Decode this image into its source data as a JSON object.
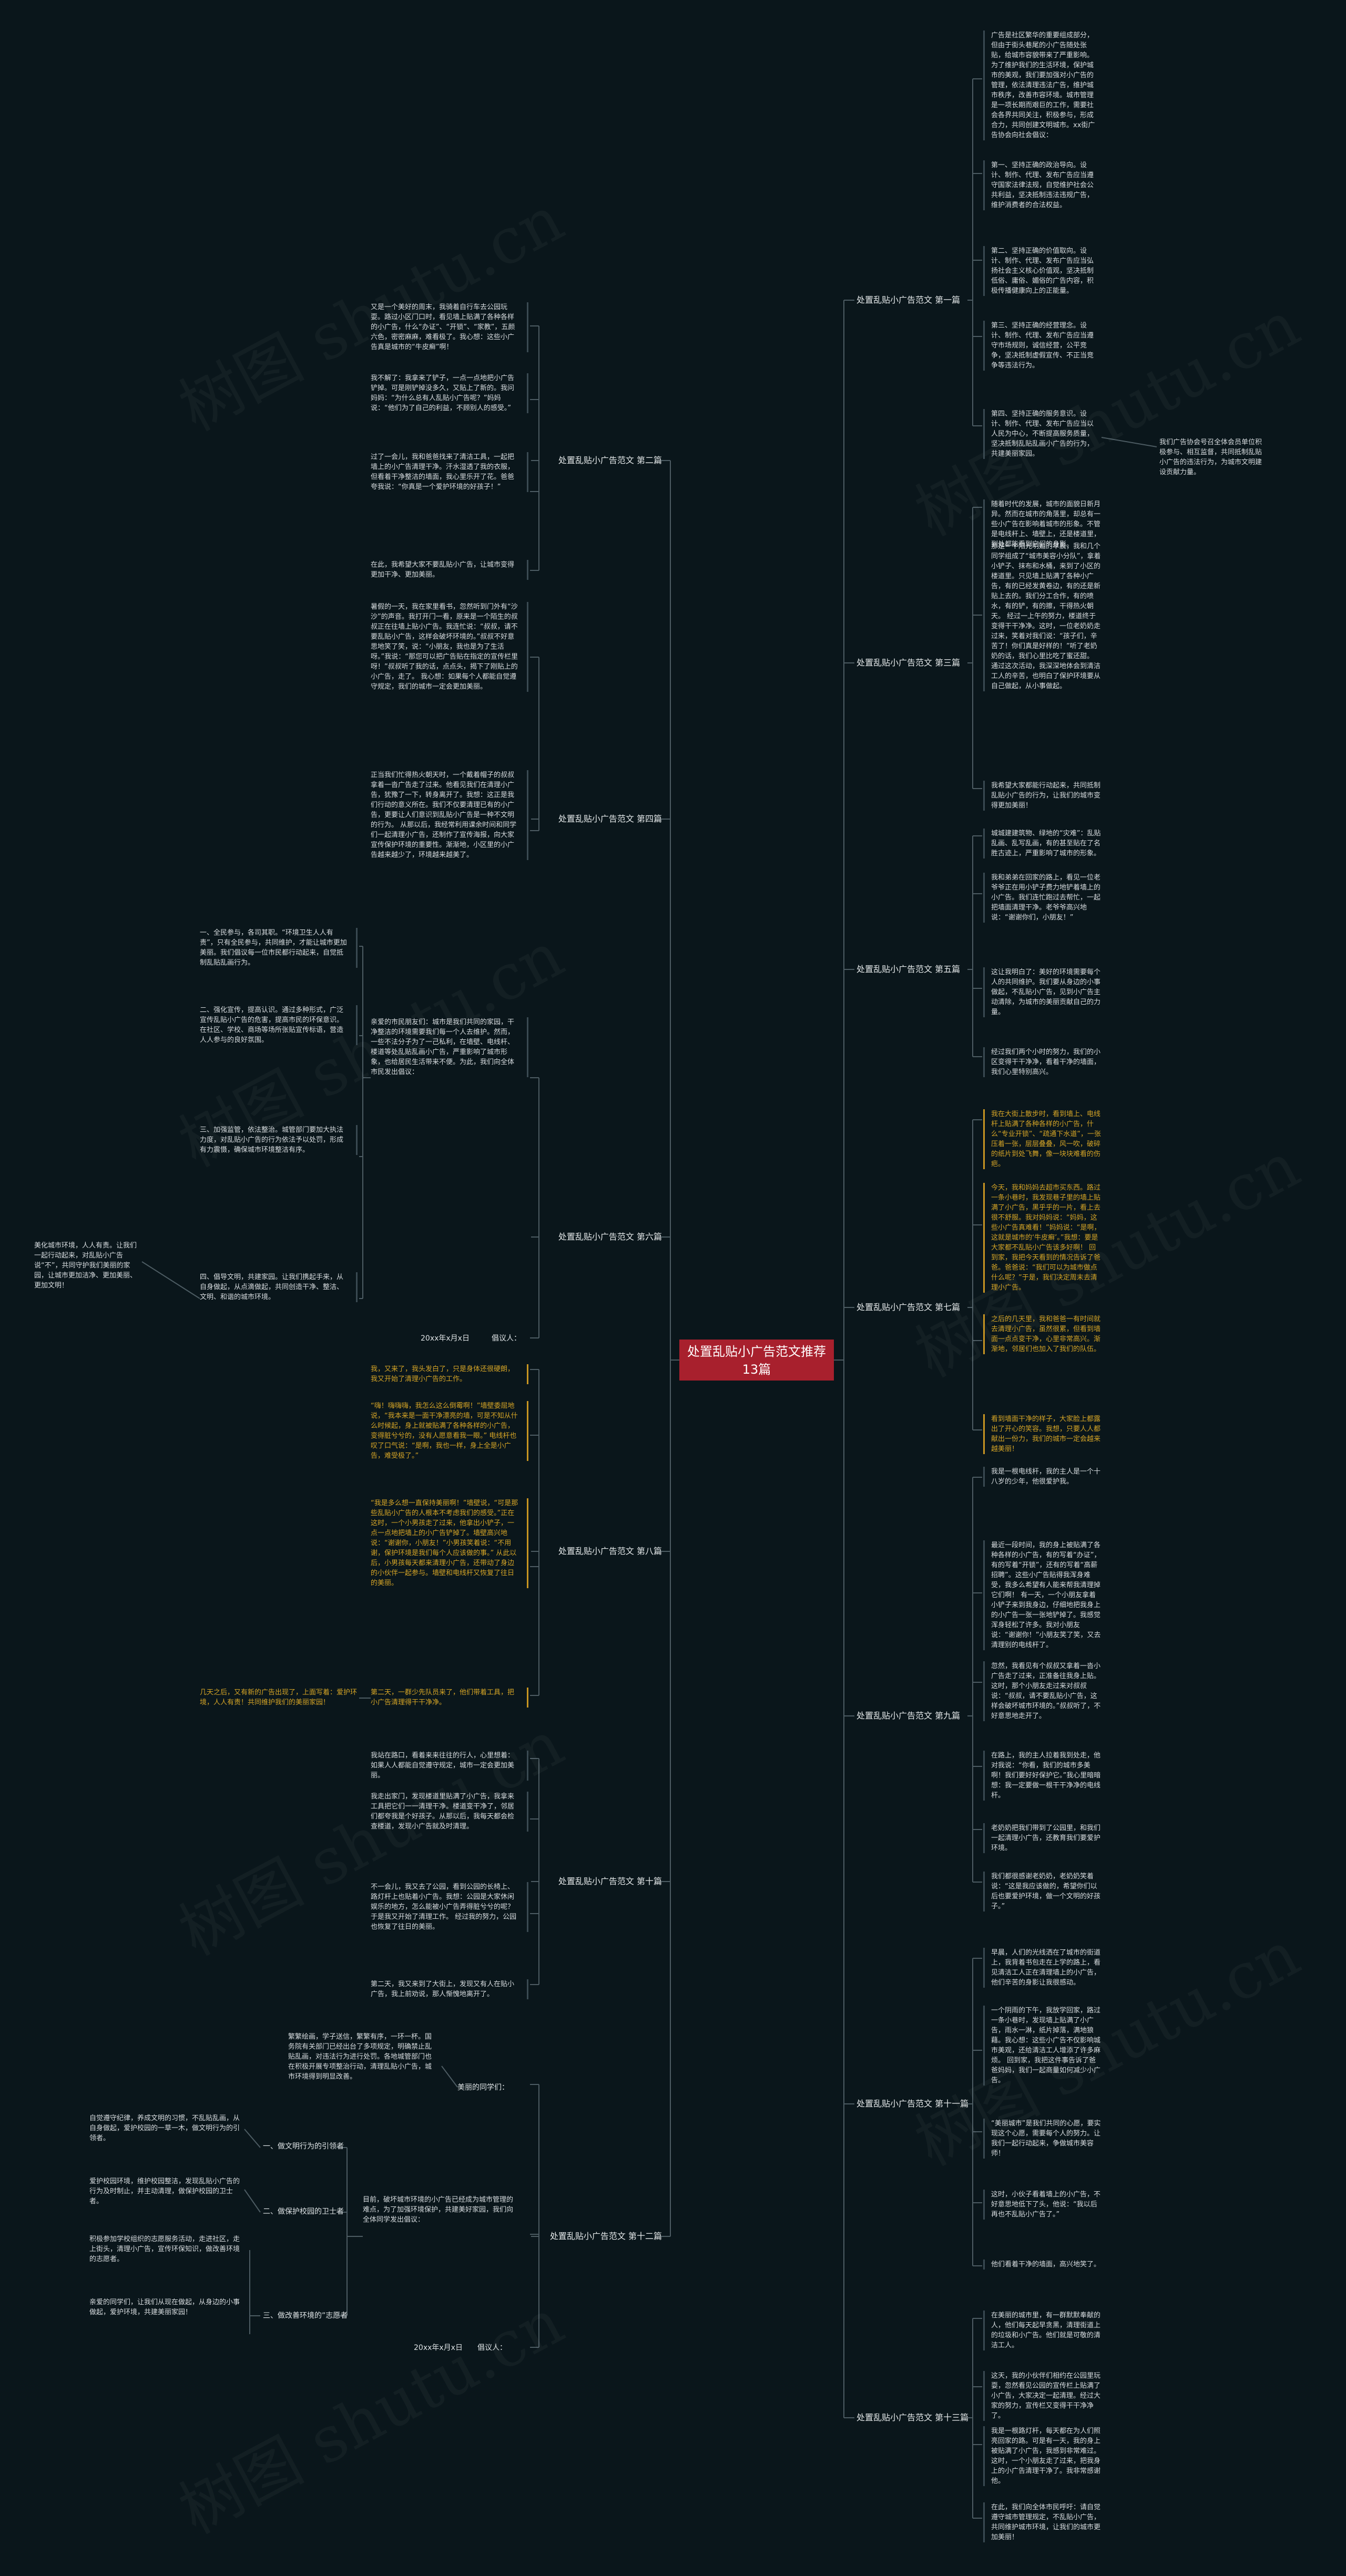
{
  "title": "处置乱贴小广告范文推荐13篇",
  "watermark": "树图 shutu.cn",
  "branches": [
    "处置乱贴小广告范文 第一篇",
    "处置乱贴小广告范文 第二篇",
    "处置乱贴小广告范文 第三篇",
    "处置乱贴小广告范文 第四篇",
    "处置乱贴小广告范文 第五篇",
    "处置乱贴小广告范文 第六篇",
    "处置乱贴小广告范文 第七篇",
    "处置乱贴小广告范文 第八篇",
    "处置乱贴小广告范文 第九篇",
    "处置乱贴小广告范文 第十篇",
    "处置乱贴小广告范文 第十一篇",
    "处置乱贴小广告范文 第十二篇",
    "处置乱贴小广告范文 第十三篇"
  ],
  "first": {
    "leaves": [
      "广告是社区繁华的重要组成部分，但由于街头巷尾的小广告随处张贴，给城市容貌带来了严重影响。为了维护我们的生活环境，保护城市的美观，我们要加强对小广告的管理，依法清理违法广告，维护城市秩序，改善市容环境。城市管理是一项长期而艰巨的工作，需要社会各界共同关注，积极参与，形成合力，共同创建文明城市。xx街广告协会向社会倡议：",
      "第一、坚持正确的政治导向。设计、制作、代理、发布广告应当遵守国家法律法规，自觉维护社会公共利益，坚决抵制违法违规广告，维护消费者的合法权益。",
      "第二、坚持正确的价值取向。设计、制作、代理、发布广告应当弘扬社会主义核心价值观，坚决抵制低俗、庸俗、媚俗的广告内容，积极传播健康向上的正能量。",
      "第三、坚持正确的经营理念。设计、制作、代理、发布广告应当遵守市场规则，诚信经营，公平竞争，坚决抵制虚假宣传、不正当竞争等违法行为。",
      "第四、坚持正确的服务意识。设计、制作、代理、发布广告应当以人民为中心，不断提高服务质量，坚决抵制乱贴乱画小广告的行为，共建美丽家园。"
    ],
    "side_note": "我们广告协会号召全体会员单位积极参与、相互监督，共同抵制乱贴小广告的违法行为，为城市文明建设贡献力量。"
  },
  "second": [
    "又是一个美好的周末，我骑着自行车去公园玩耍。路过小区门口时，看见墙上贴满了各种各样的小广告，什么“办证”、“开锁”、“家教”，五颜六色，密密麻麻，难看极了。我心想：这些小广告真是城市的“牛皮癣”啊！",
    "我不解了：我拿来了铲子，一点一点地把小广告铲掉。可是刚铲掉没多久，又贴上了新的。我问妈妈：“为什么总有人乱贴小广告呢？”妈妈说：“他们为了自己的利益，不顾别人的感受。”",
    "过了一会儿，我和爸爸找来了清洁工具，一起把墙上的小广告清理干净。汗水湿透了我的衣服，但看着干净整洁的墙面，我心里乐开了花。爸爸夸我说：“你真是一个爱护环境的好孩子！”",
    "在此，我希望大家不要乱贴小广告，让城市变得更加干净、更加美丽。"
  ],
  "third": [
    "随着时代的发展，城市的面貌日新月异。然而在城市的角落里，却总有一些小广告在影响着城市的形象。不管是电线杆上、墙壁上，还是楼道里，到处都能看到它们的身影。",
    "那是一个阳光明媚的早晨，我和几个同学组成了“城市美容小分队”，拿着小铲子、抹布和水桶，来到了小区的楼道里。只见墙上贴满了各种小广告，有的已经发黄卷边，有的还是新贴上去的。我们分工合作，有的喷水，有的铲，有的擦，干得热火朝天。\n经过一上午的努力，楼道终于变得干干净净。这时，一位老奶奶走过来，笑着对我们说：“孩子们，辛苦了！你们真是好样的！”听了老奶奶的话，我们心里比吃了蜜还甜。\n通过这次活动，我深深地体会到清洁工人的辛苦，也明白了保护环境要从自己做起，从小事做起。",
    "我希望大家都能行动起来，共同抵制乱贴小广告的行为，让我们的城市变得更加美丽！"
  ],
  "fourth": [
    "暑假的一天，我在家里看书，忽然听到门外有“沙沙”的声音。我打开门一看，原来是一个陌生的叔叔正在往墙上贴小广告。我连忙说：“叔叔，请不要乱贴小广告，这样会破坏环境的。”叔叔不好意思地笑了笑，说：“小朋友，我也是为了生活呀。”我说：“那您可以把广告贴在指定的宣传栏里呀！”叔叔听了我的话，点点头，揭下了刚贴上的小广告，走了。\n我心想：如果每个人都能自觉遵守规定，我们的城市一定会更加美丽。",
    "正当我们忙得热火朝天时，一个戴着帽子的叔叔拿着一沓广告走了过来。他看见我们在清理小广告，犹豫了一下，转身离开了。我想：这正是我们行动的意义所在。我们不仅要清理已有的小广告，更要让人们意识到乱贴小广告是一种不文明的行为。\n从那以后，我经常利用课余时间和同学们一起清理小广告，还制作了宣传海报，向大家宣传保护环境的重要性。渐渐地，小区里的小广告越来越少了，环境越来越美了。"
  ],
  "fifth": [
    "城城建建筑物、绿地的“灾难”：乱贴乱画、乱写乱画，有的甚至贴在了名胜古迹上，严重影响了城市的形象。",
    "我和弟弟在回家的路上，看见一位老爷爷正在用小铲子费力地铲着墙上的小广告。我们连忙跑过去帮忙，一起把墙面清理干净。老爷爷高兴地说：“谢谢你们，小朋友！”",
    "这让我明白了：美好的环境需要每个人的共同维护。我们要从身边的小事做起，不乱贴小广告，见到小广告主动清除，为城市的美丽贡献自己的力量。",
    "经过我们两个小时的努力，我们的小区变得干干净净，看着干净的墙面，我们心里特别高兴。"
  ],
  "sixth": {
    "subs": [
      "一、全民参与，各司其职。“环境卫生人人有责”，只有全民参与，共同维护，才能让城市更加美丽。我们倡议每一位市民都行动起来，自觉抵制乱贴乱画行为。",
      "二、强化宣传，提高认识。通过多种形式，广泛宣传乱贴小广告的危害，提高市民的环保意识。在社区、学校、商场等场所张贴宣传标语，营造人人参与的良好氛围。",
      "三、加强监管，依法整治。城管部门要加大执法力度，对乱贴小广告的行为依法予以处罚，形成有力震慑，确保城市环境整洁有序。",
      "四、倡导文明，共建家园。让我们携起手来，从自身做起，从点滴做起，共同创造干净、整洁、文明、和谐的城市环境。"
    ],
    "left_note": "美化城市环境，人人有责。让我们一起行动起来，对乱贴小广告说“不”，共同守护我们美丽的家园，让城市更加洁净、更加美丽、更加文明！",
    "leaf": "亲爱的市民朋友们：城市是我们共同的家园，干净整洁的环境需要我们每一个人去维护。然而，一些不法分子为了一己私利，在墙壁、电线杆、楼道等处乱贴乱画小广告，严重影响了城市形象，也给居民生活带来不便。为此，我们向全体市民发出倡议：",
    "date": "20xx年x月x日",
    "signer": "倡议人："
  },
  "seventh": [
    "我在大街上散步时，看到墙上、电线杆上贴满了各种各样的小广告，什么“专业开锁”、“疏通下水道”，一张压着一张，层层叠叠，风一吹，破碎的纸片到处飞舞，像一块块难看的伤疤。",
    "今天，我和妈妈去超市买东西。路过一条小巷时，我发现巷子里的墙上贴满了小广告，黑乎乎的一片，看上去很不舒服。我对妈妈说：“妈妈，这些小广告真难看！”妈妈说：“是啊，这就是城市的‘牛皮癣’。”我想：要是大家都不乱贴小广告该多好啊！\n回到家，我把今天看到的情况告诉了爸爸。爸爸说：“我们可以为城市做点什么呢？”于是，我们决定周末去清理小广告。",
    "之后的几天里，我和爸爸一有时间就去清理小广告，虽然很累，但看到墙面一点点变干净，心里非常高兴。渐渐地，邻居们也加入了我们的队伍。",
    "看到墙面干净的样子，大家脸上都露出了开心的笑容。我想，只要人人都献出一份力，我们的城市一定会越来越美丽！"
  ],
  "eighth": [
    "我，又来了，我头发白了，只是身体还很硬朗，我又开始了清理小广告的工作。",
    "“嗨！嗨嗨嗨，我怎么这么倒霉啊！”墙壁委屈地说，“我本来是一面干净漂亮的墙，可是不知从什么时候起，身上就被贴满了各种各样的小广告，变得脏兮兮的，没有人愿意看我一眼。”\n电线杆也叹了口气说：“是啊，我也一样，身上全是小广告，难受极了。”",
    "“我是多么想一直保持美丽啊！”墙壁说，“可是那些乱贴小广告的人根本不考虑我们的感受。”正在这时，一个小男孩走了过来，他拿出小铲子，一点一点地把墙上的小广告铲掉了。墙壁高兴地说：“谢谢你，小朋友！”小男孩笑着说：“不用谢，保护环境是我们每个人应该做的事。”\n从此以后，小男孩每天都来清理小广告，还带动了身边的小伙伴一起参与。墙壁和电线杆又恢复了往日的美丽。",
    "第二天，一群少先队员来了，他们带着工具，把小广告清理得干干净净。"
  ],
  "eighth_left": "几天之后，又有新的广告出现了，上面写着：爱护环境，人人有责！共同维护我们的美丽家园！",
  "ninth": [
    "我是一根电线杆，我的主人是一个十八岁的少年，他很爱护我。",
    "最近一段时间，我的身上被贴满了各种各样的小广告，有的写着“办证”，有的写着“开锁”，还有的写着“高薪招聘”。这些小广告贴得我浑身难受，我多么希望有人能来帮我清理掉它们啊！\n有一天，一个小朋友拿着小铲子来到我身边，仔细地把我身上的小广告一张一张地铲掉了。我感觉浑身轻松了许多。我对小朋友说：“谢谢你！”小朋友笑了笑，又去清理别的电线杆了。",
    "忽然，我看见有个叔叔又拿着一沓小广告走了过来，正准备往我身上贴。这时，那个小朋友走过来对叔叔说：“叔叔，请不要乱贴小广告，这样会破坏城市环境的。”叔叔听了，不好意思地走开了。",
    "在路上，我的主人拉着我到处走，他对我说：“你看，我们的城市多美啊！我们要好好保护它。”我心里暗暗想：我一定要做一根干干净净的电线杆。",
    "老奶奶把我们带到了公园里，和我们一起清理小广告，还教育我们要爱护环境。",
    "我们都很感谢老奶奶，老奶奶笑着说：“这是我应该做的，希望你们以后也要爱护环境，做一个文明的好孩子。”"
  ],
  "tenth": [
    "我站在路口，看着来来往往的行人，心里想着：如果人人都能自觉遵守规定，城市一定会更加美丽。",
    "我走出家门，发现楼道里贴满了小广告，我拿来工具把它们一一清理干净。楼道变干净了，邻居们都夸我是个好孩子。从那以后，我每天都会检查楼道，发现小广告就及时清理。",
    "不一会儿，我又去了公园，看到公园的长椅上、路灯杆上也贴着小广告。我想：公园是大家休闲娱乐的地方，怎么能被小广告弄得脏兮兮的呢？于是我又开始了清理工作。\n经过我的努力，公园也恢复了往日的美丽。",
    "第二天，我又来到了大街上，发现又有人在贴小广告，我上前劝说，那人惭愧地离开了。"
  ],
  "eleventh": [
    "早晨，人们的光线洒在了城市的街道上，我背着书包走在上学的路上，看见清洁工人正在清理墙上的小广告，他们辛苦的身影让我很感动。",
    "一个阴雨的下午，我放学回家，路过一条小巷时，发现墙上贴满了小广告，雨水一淋，纸片掉落，满地狼藉。我心想：这些小广告不仅影响城市美观，还给清洁工人增添了许多麻烦。\n回到家，我把这件事告诉了爸爸妈妈，我们一起商量如何减少小广告。",
    "“美丽城市”是我们共同的心愿，要实现这个心愿，需要每个人的努力。让我们一起行动起来，争做城市美容师！",
    "这时，小伙子看着墙上的小广告，不好意思地低下了头，他说：“我以后再也不乱贴小广告了。”",
    "他们看着干净的墙面，高兴地笑了。"
  ],
  "twelfth": {
    "top": "繁繁绘画，学子送信，繁繁有序，一环一杯。国务院有关部门已经出台了多项规定，明确禁止乱贴乱画，对违法行为进行处罚。各地城管部门也在积极开展专项整治行动，清理乱贴小广告，城市环境得到明显改善。",
    "top_tail": "美丽的同学们：",
    "subs": [
      "一、做文明行为的引领者",
      "二、做保护校园的卫士者",
      "三、做改善环境的”志愿者"
    ],
    "left_leaves": [
      "自觉遵守纪律，养成文明的习惯，不乱贴乱画，从自身做起，爱护校园的一草一木，做文明行为的引领者。",
      "爱护校园环境，维护校园整洁，发现乱贴小广告的行为及时制止，并主动清理，做保护校园的卫士者。",
      "积极参加学校组织的志愿服务活动，走进社区，走上街头，清理小广告，宣传环保知识，做改善环境的志愿者。",
      "亲爱的同学们，让我们从现在做起，从身边的小事做起，爱护环境，共建美丽家园！"
    ],
    "mid_leaf": "目前，破坏城市环境的小广告已经成为城市管理的难点，为了加强环境保护，共建美好家园，我们向全体同学发出倡议：",
    "date": "20xx年x月x日",
    "signer": "倡议人："
  },
  "thirteenth": [
    "在美丽的城市里，有一群默默奉献的人，他们每天起早贪黑，清理街道上的垃圾和小广告。他们就是可敬的清洁工人。",
    "这天，我的小伙伴们相约在公园里玩耍，忽然看见公园的宣传栏上贴满了小广告，大家决定一起清理。经过大家的努力，宣传栏又变得干干净净了。",
    "我是一根路灯杆，每天都在为人们照亮回家的路。可是有一天，我的身上被贴满了小广告，我感到非常难过。这时，一个小朋友走了过来，把我身上的小广告清理干净了。我非常感谢他。",
    "在此，我们向全体市民呼吁：请自觉遵守城市管理规定，不乱贴小广告，共同维护城市环境，让我们的城市更加美丽！"
  ]
}
